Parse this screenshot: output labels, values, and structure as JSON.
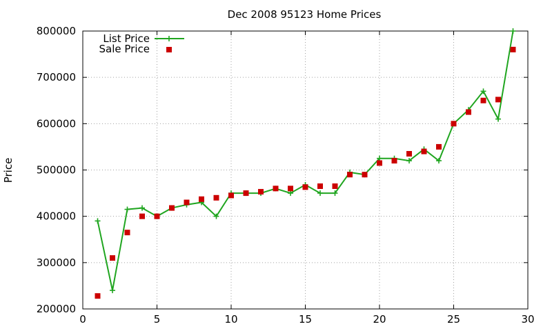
{
  "chart_data": {
    "type": "line",
    "title": "Dec 2008 95123 Home Prices",
    "xlabel": "",
    "ylabel": "Price",
    "xlim": [
      0,
      30
    ],
    "ylim": [
      200000,
      800000
    ],
    "x_ticks": [
      0,
      5,
      10,
      15,
      20,
      25,
      30
    ],
    "y_ticks": [
      200000,
      300000,
      400000,
      500000,
      600000,
      700000,
      800000
    ],
    "grid": true,
    "legend_position": "top-left",
    "series": [
      {
        "name": "List Price",
        "style": "line-plus",
        "color": "#1fa51f",
        "x": [
          1,
          2,
          3,
          4,
          5,
          6,
          7,
          8,
          9,
          10,
          11,
          12,
          13,
          14,
          15,
          16,
          17,
          18,
          19,
          20,
          21,
          22,
          23,
          24,
          25,
          26,
          27,
          28,
          29
        ],
        "values": [
          390000,
          240000,
          415000,
          418000,
          400000,
          418000,
          425000,
          430000,
          400000,
          450000,
          450000,
          450000,
          460000,
          450000,
          468000,
          450000,
          450000,
          495000,
          490000,
          525000,
          525000,
          520000,
          545000,
          520000,
          600000,
          630000,
          670000,
          610000,
          800000
        ]
      },
      {
        "name": "Sale Price",
        "style": "square-points",
        "color": "#cc0000",
        "x": [
          1,
          2,
          3,
          4,
          5,
          6,
          7,
          8,
          9,
          10,
          11,
          12,
          13,
          14,
          15,
          16,
          17,
          18,
          19,
          20,
          21,
          22,
          23,
          24,
          25,
          26,
          27,
          28,
          29
        ],
        "values": [
          228000,
          310000,
          365000,
          400000,
          400000,
          418000,
          430000,
          437000,
          440000,
          445000,
          450000,
          453000,
          460000,
          460000,
          463000,
          465000,
          465000,
          490000,
          490000,
          515000,
          520000,
          535000,
          540000,
          550000,
          600000,
          625000,
          650000,
          652000,
          760000
        ]
      }
    ]
  }
}
